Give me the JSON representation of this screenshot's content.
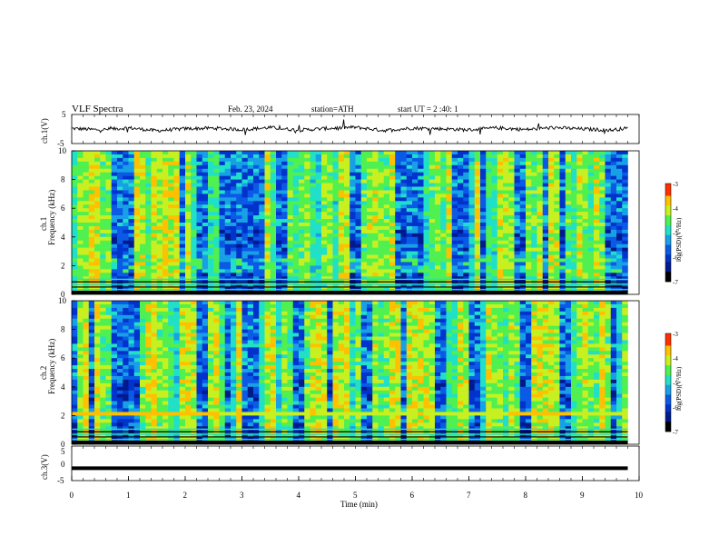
{
  "header": {
    "title": "VLF  Spectra",
    "date": "Feb. 23, 2024",
    "station": "station=ATH",
    "start_ut": "start  UT  =   2  :40: 1"
  },
  "colors": {
    "background": "#ffffff",
    "trace": "#000000",
    "colormap": [
      "#000000",
      "#001a8c",
      "#0033cc",
      "#0a5ae6",
      "#18a0e6",
      "#20e0c8",
      "#50f050",
      "#c8f020",
      "#ffc000",
      "#ff3000",
      "#ffffff"
    ]
  },
  "chart_data": [
    {
      "type": "line",
      "name": "ch1-waveform",
      "ylabel": "ch.1(V)",
      "ylim": [
        -5,
        5
      ],
      "yticks": [
        "5",
        "-5"
      ],
      "xlim": [
        0,
        10
      ],
      "x": [
        0,
        0.5,
        1,
        1.5,
        2,
        2.5,
        3,
        3.5,
        4,
        4.5,
        5,
        5.5,
        6,
        6.5,
        7,
        7.5,
        8,
        8.5,
        9,
        9.5,
        9.8
      ],
      "y": [
        0.2,
        -0.3,
        0.4,
        -0.6,
        0.1,
        0.3,
        -0.2,
        0.5,
        -0.4,
        0.2,
        0.6,
        -0.5,
        0.3,
        0.1,
        -0.3,
        0.4,
        -0.2,
        0.5,
        0.0,
        -0.4,
        0.3
      ]
    },
    {
      "type": "heatmap",
      "name": "ch1-spectrogram",
      "ylabel": "Frequency (kHz)",
      "channel_label": "ch.1",
      "xlim": [
        0,
        9.8
      ],
      "ylim": [
        0,
        10
      ],
      "yticks": [
        "0",
        "2",
        "4",
        "6",
        "8",
        "10"
      ],
      "colorbar": {
        "label": "log(PSD)(V²/Hz)",
        "range": [
          -7,
          -3
        ],
        "ticks": [
          "-3",
          "-4",
          "-5",
          "-6",
          "-7"
        ]
      },
      "features": {
        "strong_lines_khz": [
          0.2,
          0.6,
          1.0,
          1.8,
          2.0
        ],
        "bright_events_min": [
          4.75
        ],
        "hiss_band_khz": [
          1.5,
          2.5
        ]
      }
    },
    {
      "type": "heatmap",
      "name": "ch2-spectrogram",
      "ylabel": "Frequency (kHz)",
      "channel_label": "ch.2",
      "xlim": [
        0,
        9.8
      ],
      "ylim": [
        0,
        10
      ],
      "yticks": [
        "0",
        "2",
        "4",
        "6",
        "8",
        "10"
      ],
      "colorbar": {
        "label": "log(PSD)(V²/Hz)",
        "range": [
          -7,
          -3
        ],
        "ticks": [
          "-3",
          "-4",
          "-5",
          "-6",
          "-7"
        ]
      },
      "features": {
        "strong_band_khz": [
          1.9,
          2.1
        ],
        "red_segments_min": [
          [
            0,
            2.6
          ],
          [
            7.7,
            8.8
          ]
        ],
        "bright_events_min": [
          4.75
        ]
      }
    },
    {
      "type": "line",
      "name": "ch3-waveform",
      "ylabel": "ch.3(V)",
      "ylim": [
        -5,
        5
      ],
      "yticks": [
        "5",
        "0",
        "-5"
      ],
      "xlim": [
        0,
        10
      ],
      "x": [
        0,
        9.8
      ],
      "y": [
        -1.4,
        -1.4
      ],
      "xlabel": "Time  (min)",
      "xticks": [
        "0",
        "1",
        "2",
        "3",
        "4",
        "5",
        "6",
        "7",
        "8",
        "9",
        "10"
      ]
    }
  ]
}
